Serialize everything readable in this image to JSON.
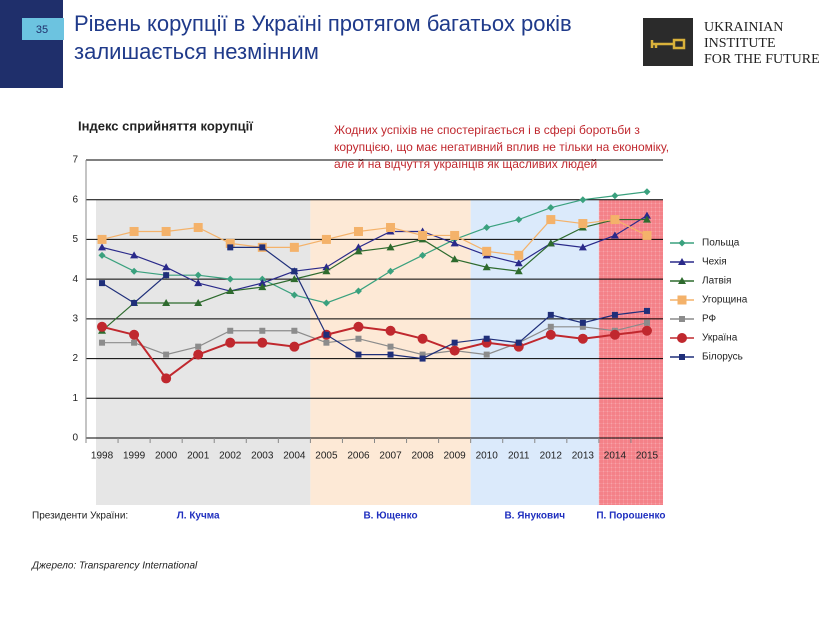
{
  "slide_number": "35",
  "header_title": [
    "Рівень корупції в Україні протягом багатьох років",
    "залишається незмінним"
  ],
  "logo": [
    "Ukrainian",
    "Institute",
    "for the Future"
  ],
  "chart_data": {
    "type": "line",
    "title": "Індекс сприйняття корупції",
    "annotation": [
      "Жодних успіхів не спостерігається і в сфері боротьби з",
      "корупцією, що має негативний вплив не тільки на економіку,",
      "але й на відчуття українців як щасливих людей"
    ],
    "categories": [
      "1998",
      "1999",
      "2000",
      "2001",
      "2002",
      "2003",
      "2004",
      "2005",
      "2006",
      "2007",
      "2008",
      "2009",
      "2010",
      "2011",
      "2012",
      "2013",
      "2014",
      "2015"
    ],
    "ylim": [
      0,
      7
    ],
    "yticks": [
      0,
      1,
      2,
      3,
      4,
      5,
      6,
      7
    ],
    "grid": true,
    "legend": "right",
    "series": [
      {
        "name": "Польща",
        "color": "#3aa17e",
        "marker": "diamond",
        "values": [
          4.6,
          4.2,
          4.1,
          4.1,
          4.0,
          4.0,
          3.6,
          3.4,
          3.7,
          4.2,
          4.6,
          5.0,
          5.3,
          5.5,
          5.8,
          6.0,
          6.1,
          6.2
        ]
      },
      {
        "name": "Чехія",
        "color": "#2a2a8a",
        "marker": "triangle",
        "values": [
          4.8,
          4.6,
          4.3,
          3.9,
          3.7,
          3.9,
          4.2,
          4.3,
          4.8,
          5.2,
          5.2,
          4.9,
          4.6,
          4.4,
          4.9,
          4.8,
          5.1,
          5.6
        ]
      },
      {
        "name": "Латвія",
        "color": "#2e6b2e",
        "marker": "triangle",
        "values": [
          2.7,
          3.4,
          3.4,
          3.4,
          3.7,
          3.8,
          4.0,
          4.2,
          4.7,
          4.8,
          5.0,
          4.5,
          4.3,
          4.2,
          4.9,
          5.3,
          5.5,
          5.5
        ]
      },
      {
        "name": "Угорщина",
        "color": "#f4b26a",
        "marker": "square-big",
        "values": [
          5.0,
          5.2,
          5.2,
          5.3,
          4.9,
          4.8,
          4.8,
          5.0,
          5.2,
          5.3,
          5.1,
          5.1,
          4.7,
          4.6,
          5.5,
          5.4,
          5.5,
          5.1
        ]
      },
      {
        "name": "РФ",
        "color": "#8c8c8c",
        "marker": "square",
        "values": [
          2.4,
          2.4,
          2.1,
          2.3,
          2.7,
          2.7,
          2.7,
          2.4,
          2.5,
          2.3,
          2.1,
          2.2,
          2.1,
          2.4,
          2.8,
          2.8,
          2.7,
          2.9
        ]
      },
      {
        "name": "Україна",
        "color": "#c0282e",
        "marker": "circle",
        "values": [
          2.8,
          2.6,
          1.5,
          2.1,
          2.4,
          2.4,
          2.3,
          2.6,
          2.8,
          2.7,
          2.5,
          2.2,
          2.4,
          2.3,
          2.6,
          2.5,
          2.6,
          2.7
        ]
      },
      {
        "name": "Білорусь",
        "color": "#1f2f7a",
        "marker": "square",
        "values": [
          3.9,
          3.4,
          4.1,
          null,
          4.8,
          4.8,
          4.2,
          2.6,
          2.1,
          2.1,
          2.0,
          2.4,
          2.5,
          2.4,
          3.1,
          2.9,
          3.1,
          3.2
        ]
      }
    ]
  },
  "presidents_label": "Президенти України:",
  "presidents": [
    "Л. Кучма",
    "В. Ющенко",
    "В. Янукович",
    "П. Порошенко"
  ],
  "source": "Джерело: Transparency International"
}
